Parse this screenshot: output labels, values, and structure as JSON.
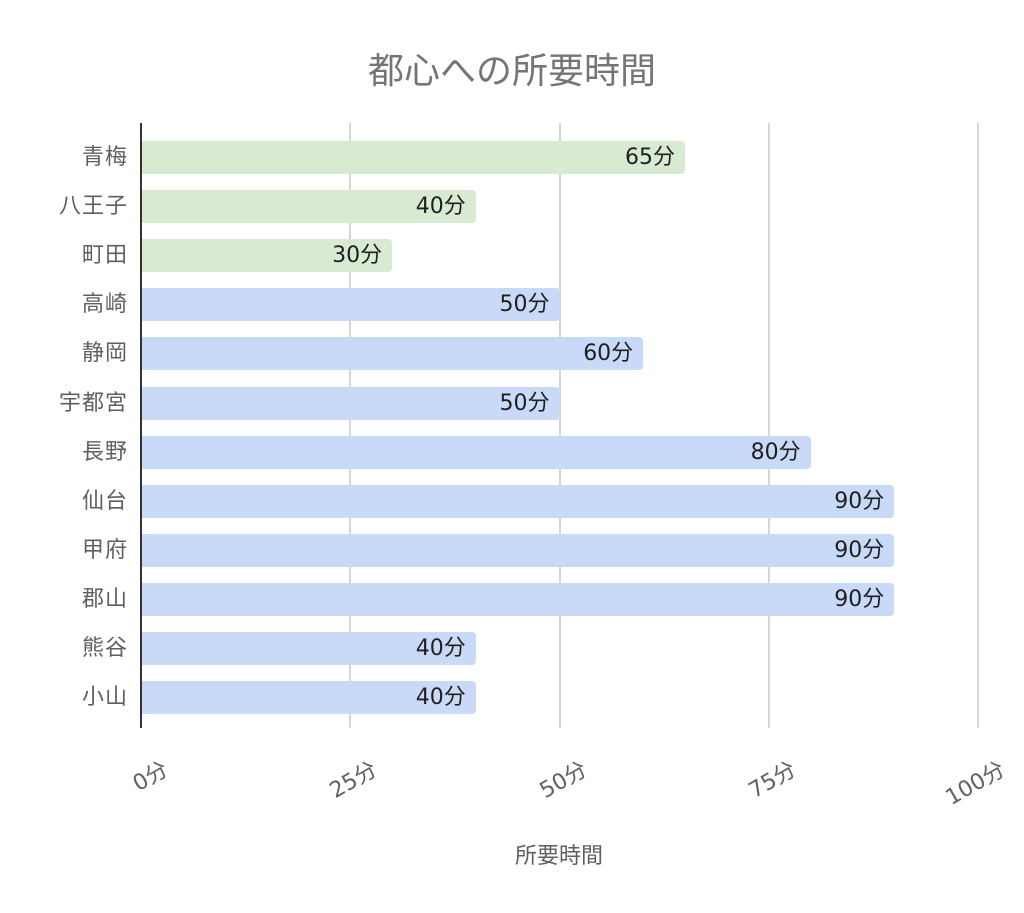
{
  "chart_data": {
    "type": "bar",
    "orientation": "horizontal",
    "title": "都心への所要時間",
    "xlabel": "所要時間",
    "ylabel": "",
    "xlim": [
      0,
      100
    ],
    "x_ticks": [
      "0分",
      "25分",
      "50分",
      "75分",
      "100分"
    ],
    "grid": true,
    "legend": null,
    "categories": [
      "青梅",
      "八王子",
      "町田",
      "高崎",
      "静岡",
      "宇都宮",
      "長野",
      "仙台",
      "甲府",
      "郡山",
      "熊谷",
      "小山"
    ],
    "values": [
      65,
      40,
      30,
      50,
      60,
      50,
      80,
      90,
      90,
      90,
      40,
      40
    ],
    "value_labels": [
      "65分",
      "40分",
      "30分",
      "50分",
      "60分",
      "50分",
      "80分",
      "90分",
      "90分",
      "90分",
      "40分",
      "40分"
    ],
    "bar_colors": [
      "#d9ead3",
      "#d9ead3",
      "#d9ead3",
      "#c9daf8",
      "#c9daf8",
      "#c9daf8",
      "#c9daf8",
      "#c9daf8",
      "#c9daf8",
      "#c9daf8",
      "#c9daf8",
      "#c9daf8"
    ]
  }
}
